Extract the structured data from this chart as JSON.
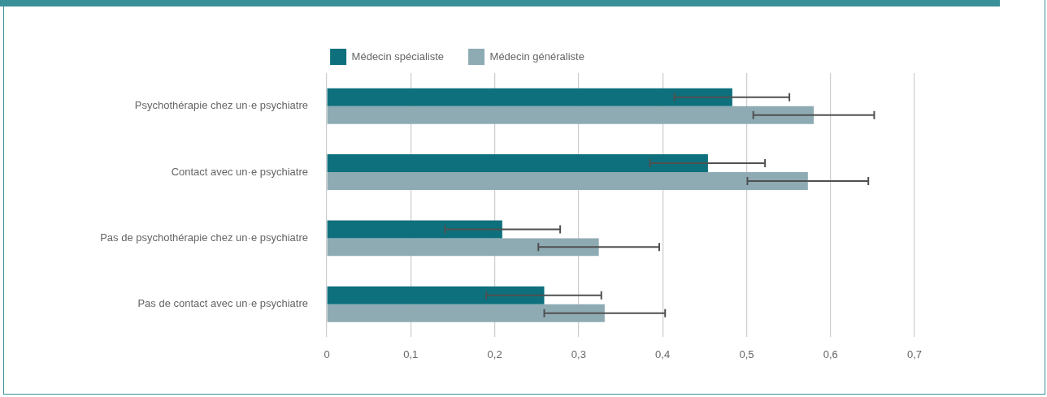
{
  "chart_data": {
    "type": "bar",
    "orientation": "horizontal",
    "categories": [
      "Psychothérapie chez un·e psychiatre",
      "Contact avec un·e psychiatre",
      "Pas de psychothérapie chez un·e psychiatre",
      "Pas de contact avec un·e psychiatre"
    ],
    "series": [
      {
        "name": "Médecin spécialiste",
        "color": "#0e707c",
        "values": [
          0.483,
          0.454,
          0.209,
          0.259
        ],
        "errors": [
          [
            0.414,
            0.551
          ],
          [
            0.385,
            0.522
          ],
          [
            0.141,
            0.278
          ],
          [
            0.19,
            0.327
          ]
        ]
      },
      {
        "name": "Médecin généraliste",
        "color": "#8eabb4",
        "values": [
          0.58,
          0.573,
          0.324,
          0.331
        ],
        "errors": [
          [
            0.508,
            0.652
          ],
          [
            0.501,
            0.645
          ],
          [
            0.252,
            0.396
          ],
          [
            0.259,
            0.403
          ]
        ]
      }
    ],
    "xlim": [
      0,
      0.7
    ],
    "xticks": [
      0,
      {
        "value": 0.1,
        "label": "0,1"
      },
      {
        "value": 0.2,
        "label": "0,2"
      },
      {
        "value": 0.3,
        "label": "0,3"
      },
      {
        "value": 0.4,
        "label": "0,4"
      },
      {
        "value": 0.5,
        "label": "0,5"
      },
      {
        "value": 0.6,
        "label": "0,6"
      },
      {
        "value": 0.7,
        "label": "0,7"
      }
    ],
    "grid": "x",
    "legend": "top"
  }
}
